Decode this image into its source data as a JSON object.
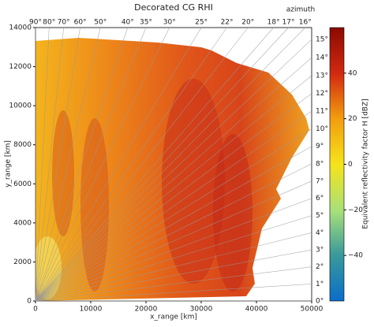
{
  "chart_data": {
    "type": "rhi",
    "title": "Decorated CG RHI",
    "xlabel": "x_range [km]",
    "ylabel": "y_range [km]",
    "xlim": [
      0,
      50000
    ],
    "ylim": [
      0,
      14000
    ],
    "xticks": [
      0,
      10000,
      20000,
      30000,
      40000,
      50000
    ],
    "yticks": [
      0,
      2000,
      4000,
      6000,
      8000,
      10000,
      12000,
      14000
    ],
    "azimuth_label": "azimuth",
    "top_ticks": [
      {
        "value": 90,
        "label": "90°"
      },
      {
        "value": 80,
        "label": "80°"
      },
      {
        "value": 70,
        "label": "70°"
      },
      {
        "value": 60,
        "label": "60°"
      },
      {
        "value": 50,
        "label": "50°"
      },
      {
        "value": 40,
        "label": "40°"
      },
      {
        "value": 35,
        "label": "35°"
      },
      {
        "value": 30,
        "label": "30°"
      },
      {
        "value": 25,
        "label": "25°"
      },
      {
        "value": 22,
        "label": "22°"
      },
      {
        "value": 20,
        "label": "20°"
      },
      {
        "value": 18,
        "label": "18°"
      },
      {
        "value": 17,
        "label": "17°"
      },
      {
        "value": 16,
        "label": "16°"
      }
    ],
    "right_ticks": [
      {
        "value": 0,
        "label": "0°"
      },
      {
        "value": 1,
        "label": "1°"
      },
      {
        "value": 2,
        "label": "2°"
      },
      {
        "value": 3,
        "label": "3°"
      },
      {
        "value": 4,
        "label": "4°"
      },
      {
        "value": 5,
        "label": "5°"
      },
      {
        "value": 6,
        "label": "6°"
      },
      {
        "value": 7,
        "label": "7°"
      },
      {
        "value": 8,
        "label": "8°"
      },
      {
        "value": 9,
        "label": "9°"
      },
      {
        "value": 10,
        "label": "10°"
      },
      {
        "value": 11,
        "label": "11°"
      },
      {
        "value": 12,
        "label": "12°"
      },
      {
        "value": 13,
        "label": "13°"
      },
      {
        "value": 14,
        "label": "14°"
      },
      {
        "value": 15,
        "label": "15°"
      }
    ],
    "colorbar": {
      "label": "Equivalent reflectivity factor H [dBZ]",
      "lim": [
        -60,
        60
      ],
      "ticks": [
        {
          "value": -40,
          "label": "−40"
        },
        {
          "value": -20,
          "label": "−20"
        },
        0,
        20,
        40
      ]
    }
  }
}
